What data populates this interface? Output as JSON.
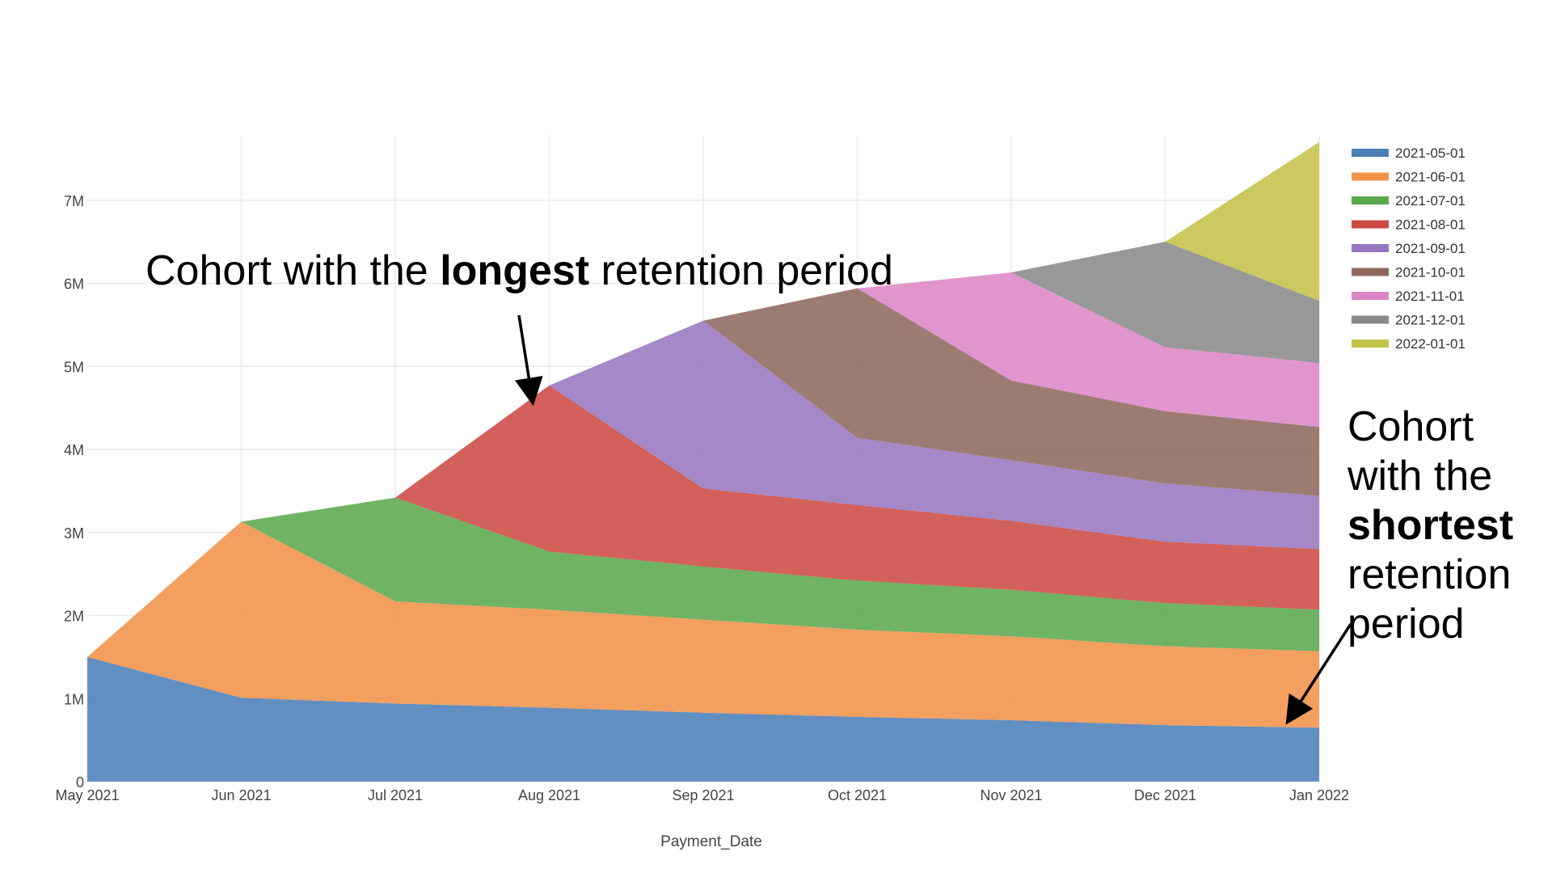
{
  "chart_data": {
    "type": "area",
    "stacked": true,
    "title": "",
    "xlabel": "Payment_Date",
    "ylabel": "",
    "ylim": [
      0,
      8000000
    ],
    "grid": true,
    "legend_position": "top-right",
    "categories": [
      "May 2021",
      "Jun 2021",
      "Jul 2021",
      "Aug 2021",
      "Sep 2021",
      "Oct 2021",
      "Nov 2021",
      "Dec 2021",
      "Jan 2022"
    ],
    "y_ticks": [
      {
        "value": 0,
        "label": "0"
      },
      {
        "value": 1000000,
        "label": "1M"
      },
      {
        "value": 2000000,
        "label": "2M"
      },
      {
        "value": 3000000,
        "label": "3M"
      },
      {
        "value": 4000000,
        "label": "4M"
      },
      {
        "value": 5000000,
        "label": "5M"
      },
      {
        "value": 6000000,
        "label": "6M"
      },
      {
        "value": 7000000,
        "label": "7M"
      }
    ],
    "series": [
      {
        "name": "2021-05-01",
        "color": "#4C7FB8",
        "values": [
          1500000,
          1010000,
          940000,
          890000,
          830000,
          780000,
          740000,
          680000,
          650000
        ]
      },
      {
        "name": "2021-06-01",
        "color": "#F0924A",
        "values": [
          0,
          2120000,
          1230000,
          1180000,
          1120000,
          1050000,
          1010000,
          950000,
          920000
        ]
      },
      {
        "name": "2021-07-01",
        "color": "#5CA84E",
        "values": [
          0,
          0,
          1250000,
          700000,
          640000,
          590000,
          560000,
          520000,
          500000
        ]
      },
      {
        "name": "2021-08-01",
        "color": "#CC4A44",
        "values": [
          0,
          0,
          0,
          2000000,
          940000,
          910000,
          830000,
          740000,
          730000
        ]
      },
      {
        "name": "2021-09-01",
        "color": "#9878C0",
        "values": [
          0,
          0,
          0,
          0,
          2020000,
          810000,
          730000,
          700000,
          640000
        ]
      },
      {
        "name": "2021-10-01",
        "color": "#8E6A5E",
        "values": [
          0,
          0,
          0,
          0,
          0,
          1800000,
          960000,
          870000,
          830000
        ]
      },
      {
        "name": "2021-11-01",
        "color": "#DC86C6",
        "values": [
          0,
          0,
          0,
          0,
          0,
          0,
          1300000,
          770000,
          770000
        ]
      },
      {
        "name": "2021-12-01",
        "color": "#8A8A8A",
        "values": [
          0,
          0,
          0,
          0,
          0,
          0,
          0,
          1270000,
          750000
        ]
      },
      {
        "name": "2022-01-01",
        "color": "#C4C24A",
        "values": [
          0,
          0,
          0,
          0,
          0,
          0,
          0,
          0,
          1910000
        ]
      }
    ],
    "annotations": [
      {
        "id": "longest",
        "text_before": "Cohort with the ",
        "text_bold": "longest",
        "text_after": " retention period"
      },
      {
        "id": "shortest",
        "text_before": "Cohort with the ",
        "text_bold": "shortest",
        "text_after": " retention period"
      }
    ]
  }
}
